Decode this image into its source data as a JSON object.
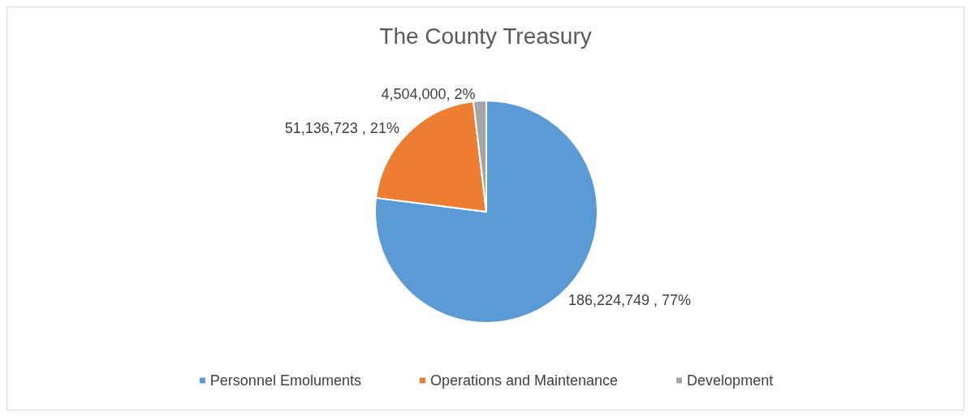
{
  "chart_data": {
    "type": "pie",
    "title": "The County Treasury",
    "categories": [
      "Personnel Emoluments",
      "Operations and Maintenance",
      "Development"
    ],
    "values": [
      186224749,
      51136723,
      4504000
    ],
    "colors": [
      "#5b9bd5",
      "#ed7d31",
      "#a5a5a5"
    ],
    "value_labels": [
      "186,224,749 , 77%",
      "51,136,723 , 21%",
      "4,504,000, 2%"
    ],
    "legend": "bottom"
  }
}
